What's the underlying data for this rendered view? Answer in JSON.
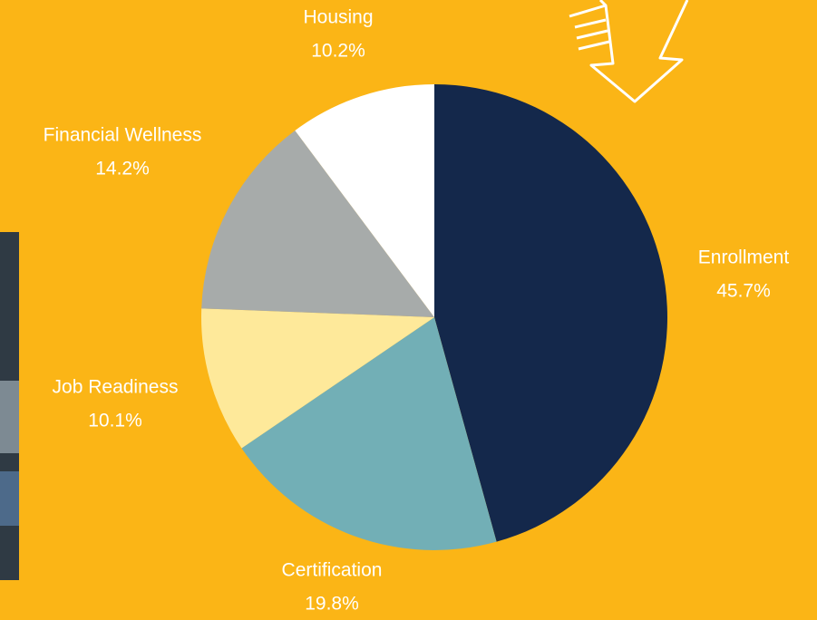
{
  "chart_data": {
    "type": "pie",
    "categories": [
      "Enrollment",
      "Certification",
      "Job Readiness",
      "Financial Wellness",
      "Housing"
    ],
    "values": [
      45.7,
      19.8,
      10.1,
      14.2,
      10.2
    ],
    "value_labels": [
      "45.7%",
      "19.8%",
      "10.1%",
      "14.2%",
      "10.2%"
    ],
    "colors": [
      "#14284b",
      "#72afb6",
      "#fee99a",
      "#a7abaa",
      "#ffffff"
    ]
  }
}
